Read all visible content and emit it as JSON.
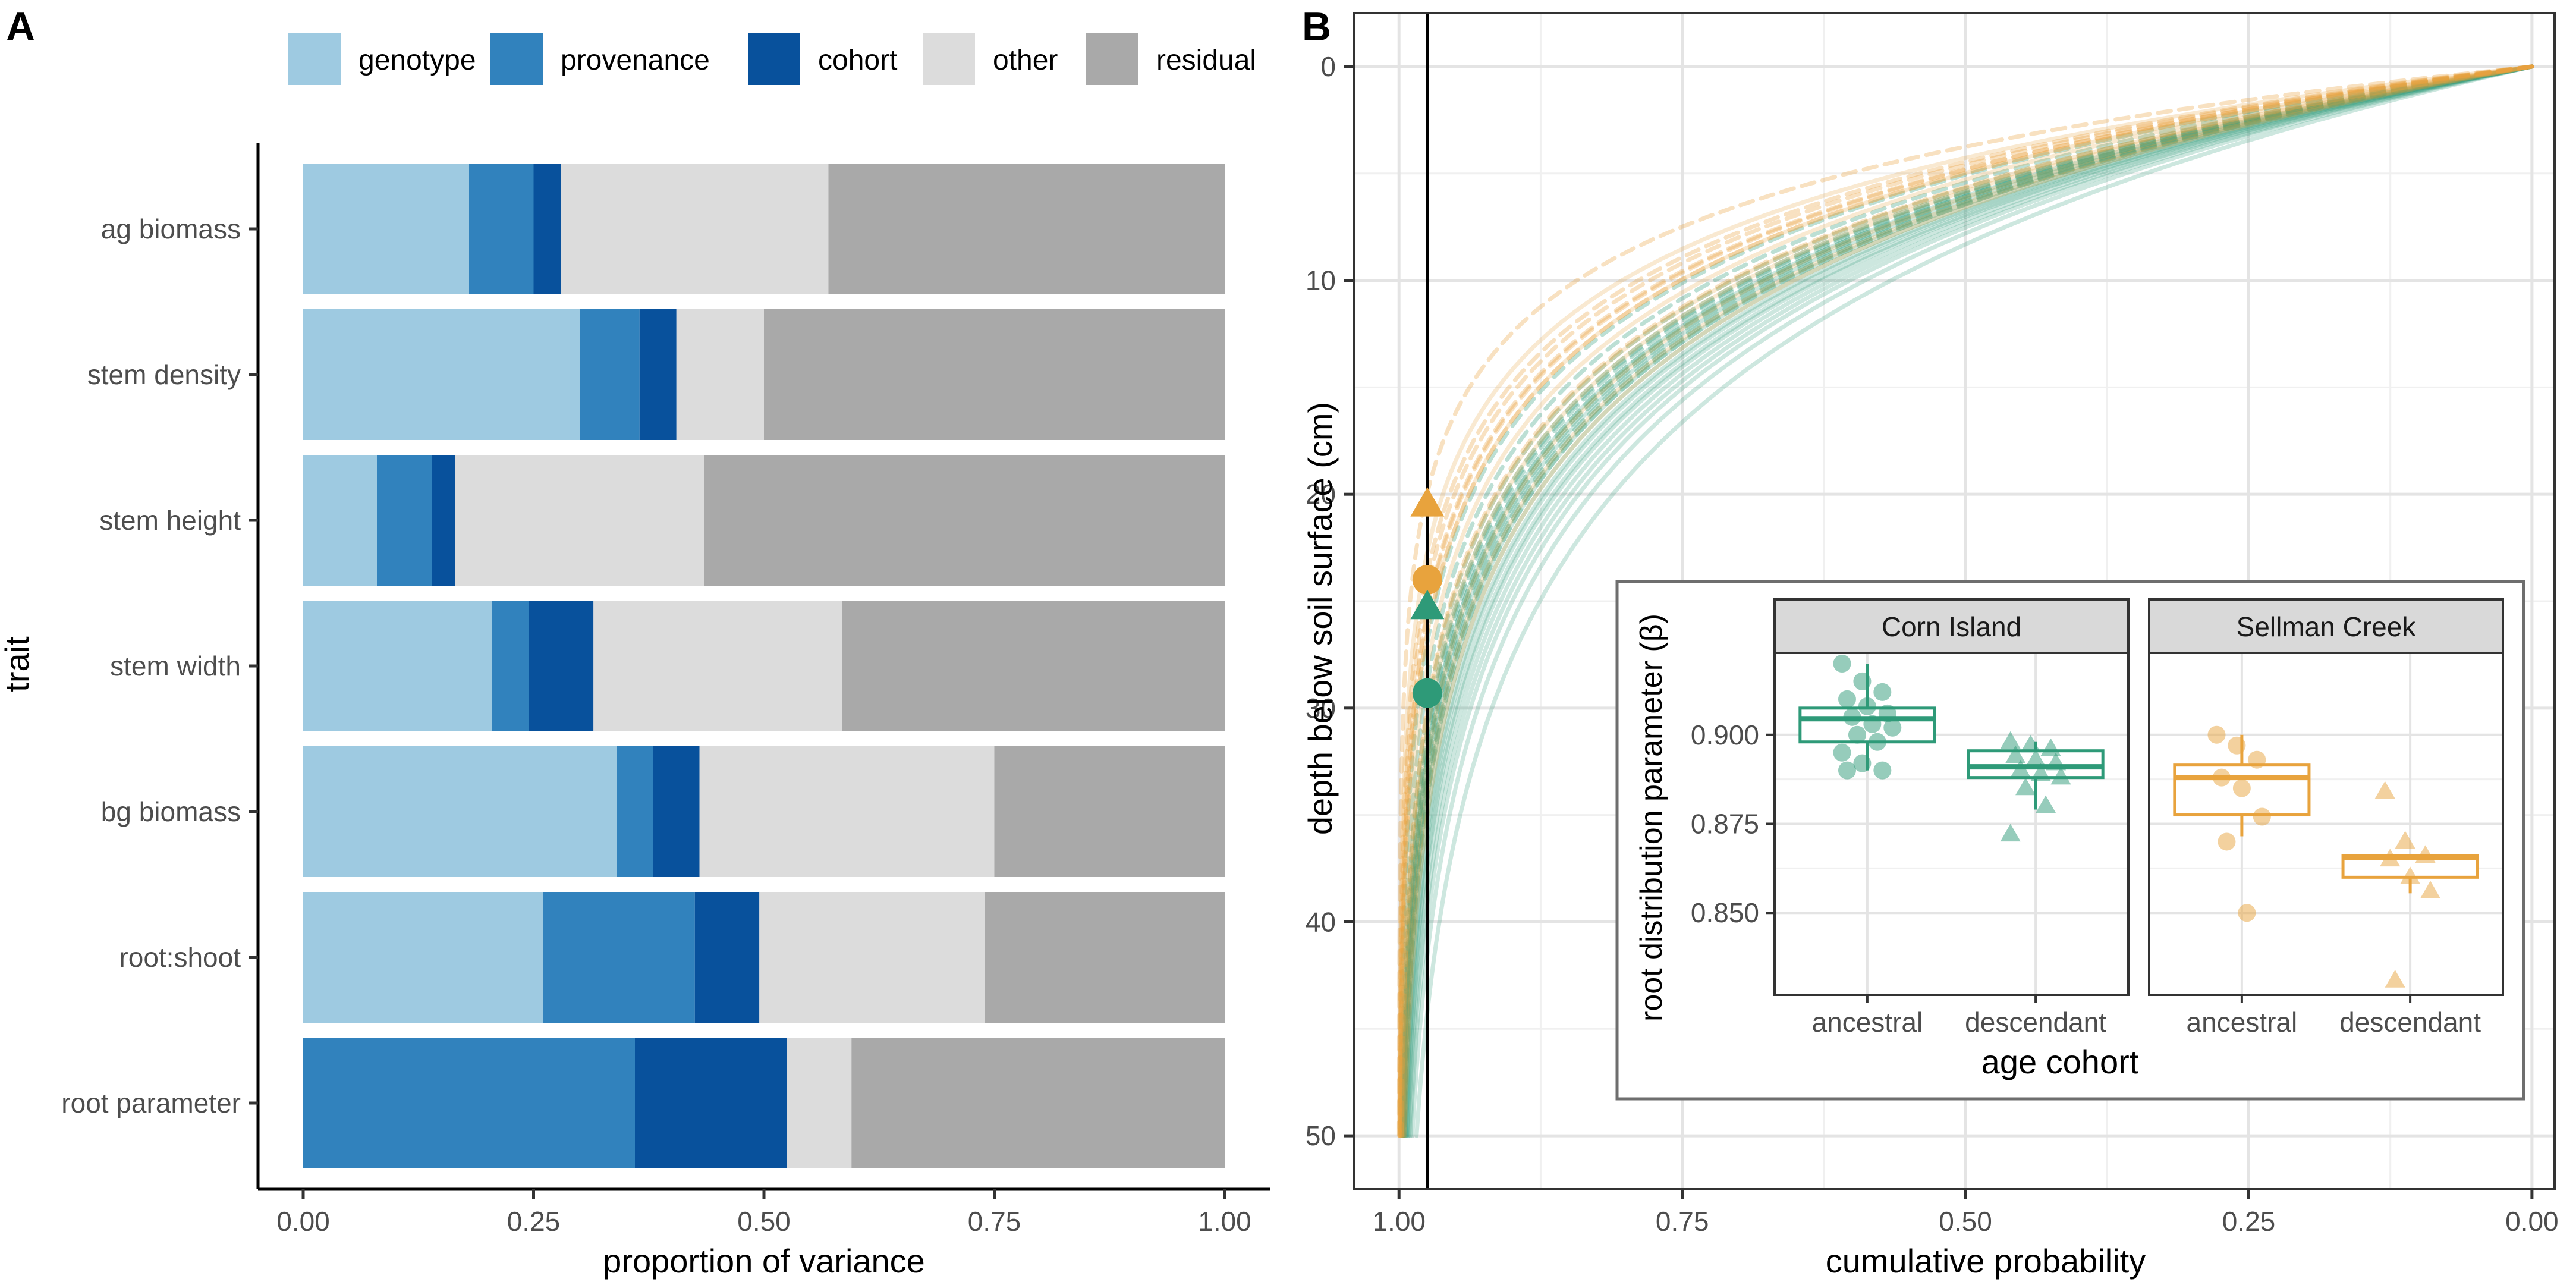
{
  "panel_labels": {
    "a": "A",
    "b": "B"
  },
  "chart_data": [
    {
      "type": "bar",
      "orientation": "horizontal",
      "stacked": true,
      "title": "",
      "xlabel": "proportion of variance",
      "ylabel": "trait",
      "xlim": [
        0,
        1
      ],
      "xticks": [
        "0.00",
        "0.25",
        "0.50",
        "0.75",
        "1.00"
      ],
      "legend_position": "top",
      "categories": [
        "ag biomass",
        "stem density",
        "stem height",
        "stem width",
        "bg biomass",
        "root:shoot",
        "root parameter"
      ],
      "series": [
        {
          "name": "genotype",
          "color": "#9ecae1",
          "values": [
            0.18,
            0.3,
            0.08,
            0.205,
            0.34,
            0.26,
            0.0
          ]
        },
        {
          "name": "provenance",
          "color": "#3182bd",
          "values": [
            0.07,
            0.065,
            0.06,
            0.04,
            0.04,
            0.165,
            0.36
          ]
        },
        {
          "name": "cohort",
          "color": "#08519c",
          "values": [
            0.03,
            0.04,
            0.025,
            0.07,
            0.05,
            0.07,
            0.165
          ]
        },
        {
          "name": "other",
          "color": "#dcdcdc",
          "values": [
            0.29,
            0.095,
            0.27,
            0.27,
            0.32,
            0.245,
            0.07
          ]
        },
        {
          "name": "residual",
          "color": "#a9a9a9",
          "values": [
            0.43,
            0.5,
            0.565,
            0.415,
            0.25,
            0.26,
            0.405
          ]
        }
      ]
    },
    {
      "type": "line",
      "title": "",
      "xlabel": "cumulative probability",
      "ylabel": "depth below soil surface (cm)",
      "xlim": [
        1.04,
        -0.02
      ],
      "ylim": [
        -2.5,
        52.5
      ],
      "x_reversed": true,
      "y_reversed": true,
      "xticks": [
        "1.00",
        "0.75",
        "0.50",
        "0.25",
        "0.00"
      ],
      "yticks": [
        "0",
        "10",
        "20",
        "30",
        "40",
        "50"
      ],
      "model": "cumulative probability = 1 - beta^depth",
      "reference_line_x": 0.975,
      "max_depth": 50,
      "series": [
        {
          "name": "Corn Island ancestral",
          "color": "#2e9a78",
          "dashed": false,
          "betas": [
            0.92,
            0.915,
            0.912,
            0.91,
            0.908,
            0.906,
            0.905,
            0.903,
            0.902,
            0.9,
            0.898,
            0.895,
            0.892
          ]
        },
        {
          "name": "Corn Island descendant",
          "color": "#2e9a78",
          "dashed": true,
          "betas": [
            0.898,
            0.897,
            0.896,
            0.894,
            0.893,
            0.892,
            0.89,
            0.889,
            0.888,
            0.885,
            0.88,
            0.872
          ]
        },
        {
          "name": "Sellman Creek ancestral",
          "color": "#e8a33d",
          "dashed": false,
          "betas": [
            0.9,
            0.897,
            0.893,
            0.888,
            0.885,
            0.877,
            0.87,
            0.85
          ]
        },
        {
          "name": "Sellman Creek descendant",
          "color": "#e8a33d",
          "dashed": true,
          "betas": [
            0.884,
            0.87,
            0.866,
            0.865,
            0.86,
            0.856,
            0.831
          ]
        }
      ],
      "markers": [
        {
          "name": "Sellman Creek descendant",
          "shape": "triangle",
          "color": "#e8a33d",
          "depth": 20.5
        },
        {
          "name": "Sellman Creek ancestral",
          "shape": "circle",
          "color": "#e8a33d",
          "depth": 24.0
        },
        {
          "name": "Corn Island descendant",
          "shape": "triangle",
          "color": "#2e9a78",
          "depth": 25.3
        },
        {
          "name": "Corn Island ancestral",
          "shape": "circle",
          "color": "#2e9a78",
          "depth": 29.3
        }
      ]
    },
    {
      "type": "box",
      "title": "",
      "xlabel": "age cohort",
      "ylabel": "root distribution parameter (β)",
      "ylim": [
        0.827,
        0.923
      ],
      "yticks": [
        "0.850",
        "0.875",
        "0.900"
      ],
      "categories": [
        "ancestral",
        "descendant"
      ],
      "facets": [
        {
          "name": "Corn Island",
          "color": "#2e9a78",
          "groups": [
            {
              "category": "ancestral",
              "shape": "circle",
              "q1": 0.898,
              "median": 0.9045,
              "q3": 0.9075,
              "whisker_low": 0.89,
              "whisker_high": 0.92,
              "points": [
                0.92,
                0.915,
                0.912,
                0.91,
                0.908,
                0.906,
                0.905,
                0.903,
                0.902,
                0.9,
                0.898,
                0.895,
                0.892,
                0.89,
                0.89
              ]
            },
            {
              "category": "descendant",
              "shape": "triangle",
              "q1": 0.888,
              "median": 0.891,
              "q3": 0.8955,
              "whisker_low": 0.879,
              "whisker_high": 0.898,
              "points": [
                0.898,
                0.897,
                0.896,
                0.894,
                0.893,
                0.892,
                0.89,
                0.889,
                0.888,
                0.885,
                0.88,
                0.872
              ]
            }
          ]
        },
        {
          "name": "Sellman Creek",
          "color": "#e8a33d",
          "groups": [
            {
              "category": "ancestral",
              "shape": "circle",
              "q1": 0.8775,
              "median": 0.888,
              "q3": 0.8915,
              "whisker_low": 0.8715,
              "whisker_high": 0.9,
              "points": [
                0.9,
                0.897,
                0.893,
                0.888,
                0.885,
                0.877,
                0.87,
                0.85
              ]
            },
            {
              "category": "descendant",
              "shape": "triangle",
              "q1": 0.86,
              "median": 0.8655,
              "q3": 0.866,
              "whisker_low": 0.8555,
              "whisker_high": 0.866,
              "points": [
                0.884,
                0.87,
                0.866,
                0.865,
                0.86,
                0.856,
                0.831
              ]
            }
          ]
        }
      ]
    }
  ]
}
